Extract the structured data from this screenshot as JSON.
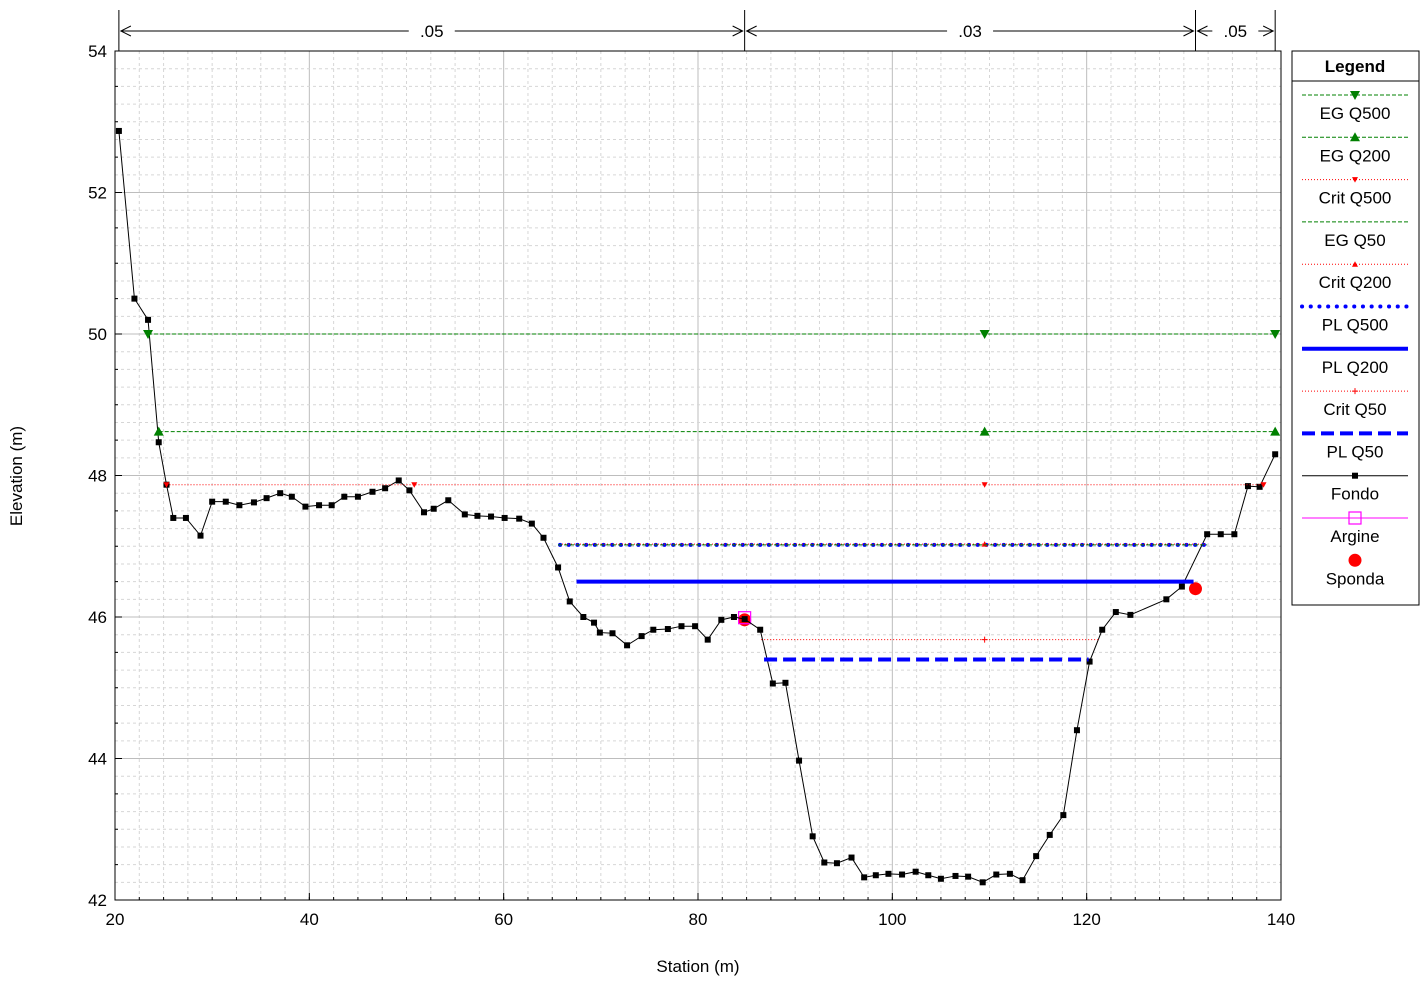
{
  "chart_data": {
    "type": "line",
    "xlabel": "Station (m)",
    "ylabel": "Elevation (m)",
    "xlim": [
      20,
      140
    ],
    "ylim": [
      42,
      54
    ],
    "xticks": [
      "20",
      "40",
      "60",
      "80",
      "100",
      "120",
      "140"
    ],
    "yticks": [
      "42",
      "44",
      "46",
      "48",
      "50",
      "52",
      "54"
    ],
    "grid": true,
    "legend_position": "right",
    "legend_title": "Legend",
    "manning": [
      {
        "from": 20.4,
        "to": 84.8,
        "label": ".05"
      },
      {
        "from": 84.8,
        "to": 131.2,
        "label": ".03"
      },
      {
        "from": 131.2,
        "to": 139.4,
        "label": ".05"
      }
    ],
    "series": [
      {
        "name": "EG Q500",
        "kind": "level",
        "color": "#008000",
        "style": "dashed-thin",
        "marker": "tri-down",
        "y": 50.0,
        "x_start": 23.4,
        "x_end": 139.4,
        "marker_x": [
          23.4,
          109.5,
          139.4
        ]
      },
      {
        "name": "EG Q200",
        "kind": "level",
        "color": "#008000",
        "style": "dashed-thin",
        "marker": "tri-up",
        "y": 48.62,
        "x_start": 24.5,
        "x_end": 139.4,
        "marker_x": [
          24.5,
          109.5,
          139.4
        ]
      },
      {
        "name": "Crit Q500",
        "kind": "level",
        "color": "#ff0000",
        "style": "dotted-thin",
        "marker": "tri-down-small",
        "y": 47.87,
        "x_start": 25.3,
        "x_end": 138.2,
        "marker_x": [
          25.3,
          50.8,
          109.5,
          138.2
        ]
      },
      {
        "name": "EG Q50",
        "kind": "level",
        "color": "#008000",
        "style": "dashed-thin",
        "marker": "none",
        "y": 47.02,
        "x_start": 65.6,
        "x_end": 132.4,
        "marker_x": []
      },
      {
        "name": "Crit Q200",
        "kind": "level",
        "color": "#ff0000",
        "style": "dotted-thin",
        "marker": "tri-up-small",
        "y": 47.03,
        "x_start": 66.0,
        "x_end": 132.3,
        "marker_x": [
          109.5
        ]
      },
      {
        "name": "PL Q500",
        "kind": "level",
        "color": "#0000ff",
        "style": "dotted-thick",
        "marker": "none",
        "y": 47.02,
        "x_start": 65.8,
        "x_end": 132.4,
        "marker_x": []
      },
      {
        "name": "PL Q200",
        "kind": "level",
        "color": "#0000ff",
        "style": "solid-thick",
        "marker": "none",
        "y": 46.5,
        "x_start": 67.5,
        "x_end": 131.0,
        "marker_x": []
      },
      {
        "name": "Crit Q50",
        "kind": "level",
        "color": "#ff0000",
        "style": "dotted-thin",
        "marker": "plus",
        "y": 45.68,
        "x_start": 86.5,
        "x_end": 121.2,
        "marker_x": [
          109.5
        ]
      },
      {
        "name": "PL Q50",
        "kind": "level",
        "color": "#0000ff",
        "style": "dashed-thick",
        "marker": "none",
        "y": 45.4,
        "x_start": 86.8,
        "x_end": 120.2,
        "marker_x": []
      },
      {
        "name": "Fondo",
        "kind": "profile",
        "color": "#000000",
        "style": "solid-thin",
        "marker": "square",
        "x": [
          20.4,
          22.0,
          23.4,
          24.5,
          25.3,
          26.0,
          27.3,
          28.8,
          30.0,
          31.4,
          32.8,
          34.3,
          35.6,
          37.0,
          38.2,
          39.6,
          41.0,
          42.3,
          43.6,
          45.0,
          46.5,
          47.8,
          49.2,
          50.3,
          51.8,
          52.8,
          54.3,
          56.0,
          57.3,
          58.7,
          60.1,
          61.6,
          62.9,
          64.1,
          65.6,
          66.8,
          68.2,
          69.3,
          69.9,
          71.2,
          72.7,
          74.2,
          75.4,
          76.9,
          78.3,
          79.7,
          81.0,
          82.4,
          83.7,
          84.8,
          86.4,
          87.7,
          89.0,
          90.4,
          91.8,
          93.0,
          94.3,
          95.8,
          97.1,
          98.3,
          99.6,
          101.0,
          102.4,
          103.7,
          105.0,
          106.5,
          107.8,
          109.3,
          110.7,
          112.1,
          113.4,
          114.8,
          116.2,
          117.6,
          119.0,
          120.3,
          121.6,
          123.0,
          124.5,
          128.2,
          129.8,
          132.4,
          133.8,
          135.2,
          136.6,
          137.8,
          139.4
        ],
        "y": [
          52.87,
          50.5,
          50.2,
          48.47,
          47.87,
          47.4,
          47.4,
          47.15,
          47.63,
          47.63,
          47.58,
          47.62,
          47.68,
          47.75,
          47.7,
          47.56,
          47.58,
          47.58,
          47.7,
          47.7,
          47.77,
          47.82,
          47.93,
          47.79,
          47.48,
          47.53,
          47.65,
          47.45,
          47.43,
          47.42,
          47.4,
          47.39,
          47.32,
          47.12,
          46.7,
          46.22,
          46.0,
          45.92,
          45.78,
          45.77,
          45.6,
          45.73,
          45.82,
          45.83,
          45.87,
          45.87,
          45.68,
          45.96,
          46.0,
          45.97,
          45.82,
          45.06,
          45.07,
          43.97,
          42.9,
          42.53,
          42.52,
          42.6,
          42.32,
          42.35,
          42.37,
          42.36,
          42.4,
          42.35,
          42.3,
          42.34,
          42.33,
          42.25,
          42.36,
          42.37,
          42.28,
          42.62,
          42.92,
          43.2,
          44.4,
          45.37,
          45.82,
          46.07,
          46.03,
          46.25,
          46.43,
          47.17,
          47.17,
          47.17,
          47.85,
          47.84,
          48.3
        ]
      },
      {
        "name": "Argine",
        "kind": "points",
        "color": "#ff00ff",
        "style": "solid-thin",
        "marker": "open-square",
        "x": [
          84.8
        ],
        "y": [
          45.99
        ]
      },
      {
        "name": "Sponda",
        "kind": "points",
        "color": "#ff0000",
        "style": "none",
        "marker": "filled-circle",
        "x": [
          84.8,
          131.2
        ],
        "y": [
          45.96,
          46.4
        ]
      }
    ]
  }
}
